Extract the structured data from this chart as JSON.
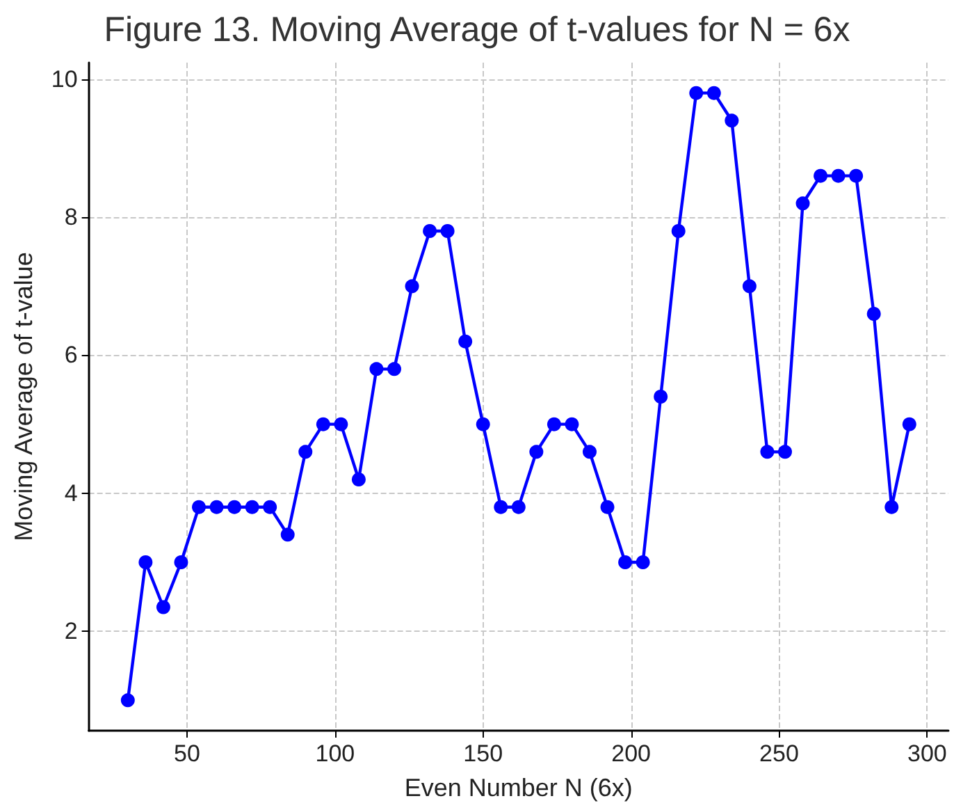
{
  "chart_data": {
    "type": "line",
    "title": "Figure 13. Moving Average of t-values for N = 6x",
    "xlabel": "Even Number N (6x)",
    "ylabel": "Moving Average of t-value",
    "x": [
      30,
      36,
      42,
      48,
      54,
      60,
      66,
      72,
      78,
      84,
      90,
      96,
      102,
      108,
      114,
      120,
      126,
      132,
      138,
      144,
      150,
      156,
      162,
      168,
      174,
      180,
      186,
      192,
      198,
      204,
      210,
      216,
      222,
      228,
      234,
      240,
      246,
      252,
      258,
      264,
      270,
      276,
      282,
      288,
      294
    ],
    "series": [
      {
        "color": "#0000ff",
        "values": [
          1,
          3,
          2.35,
          3,
          3.8,
          3.8,
          3.8,
          3.8,
          3.8,
          3.4,
          4.6,
          5,
          5,
          4.2,
          5.8,
          5.8,
          7,
          7.8,
          7.8,
          6.2,
          5,
          3.8,
          3.8,
          4.6,
          5,
          5,
          4.6,
          3.8,
          3,
          3,
          5.4,
          7.8,
          9.8,
          9.8,
          9.4,
          7,
          4.6,
          4.6,
          8.2,
          8.6,
          8.6,
          8.6,
          6.6,
          3.8,
          5
        ]
      }
    ],
    "xlim": [
      16.8,
      307.2
    ],
    "xticks": [
      50,
      100,
      150,
      200,
      250,
      300
    ],
    "ylim": [
      0.56,
      10.24
    ],
    "yticks": [
      2,
      4,
      6,
      8,
      10
    ],
    "grid": true,
    "marker": "circle",
    "line_style": "solid"
  }
}
